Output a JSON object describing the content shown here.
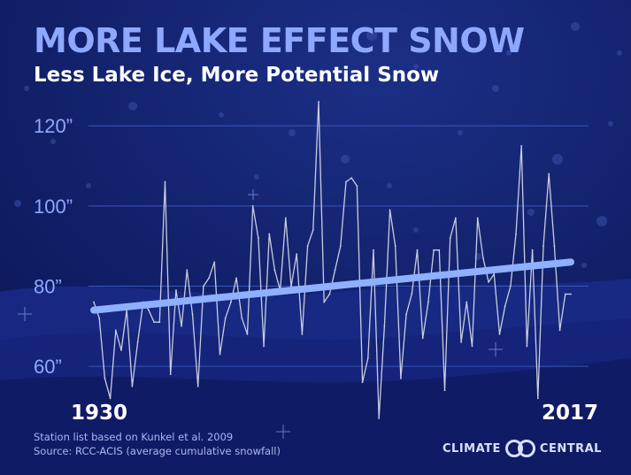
{
  "header": {
    "title": "MORE LAKE EFFECT SNOW",
    "subtitle": "Less Lake Ice, More Potential Snow"
  },
  "footer": {
    "note1": "Station list based on Kunkel et al. 2009",
    "note2": "Source: RCC-ACIS (average cumulative snowfall)"
  },
  "brand": {
    "left": "CLIMATE",
    "right": "CENTRAL"
  },
  "colors": {
    "background": "#0f1c63",
    "title": "#8fa8ff",
    "trend": "#8fb0ff",
    "series": "#c8cde0"
  },
  "chart_data": {
    "type": "line",
    "x": [
      1930,
      1931,
      1932,
      1933,
      1934,
      1935,
      1936,
      1937,
      1938,
      1939,
      1940,
      1941,
      1942,
      1943,
      1944,
      1945,
      1946,
      1947,
      1948,
      1949,
      1950,
      1951,
      1952,
      1953,
      1954,
      1955,
      1956,
      1957,
      1958,
      1959,
      1960,
      1961,
      1962,
      1963,
      1964,
      1965,
      1966,
      1967,
      1968,
      1969,
      1970,
      1971,
      1972,
      1973,
      1974,
      1975,
      1976,
      1977,
      1978,
      1979,
      1980,
      1981,
      1982,
      1983,
      1984,
      1985,
      1986,
      1987,
      1988,
      1989,
      1990,
      1991,
      1992,
      1993,
      1994,
      1995,
      1996,
      1997,
      1998,
      1999,
      2000,
      2001,
      2002,
      2003,
      2004,
      2005,
      2006,
      2007,
      2008,
      2009,
      2010,
      2011,
      2012,
      2013,
      2014,
      2015,
      2016,
      2017
    ],
    "series": [
      {
        "values": [
          76,
          72,
          57,
          52,
          69,
          64,
          74,
          55,
          66,
          76,
          74,
          71,
          71,
          106,
          58,
          79,
          70,
          84,
          73,
          55,
          80,
          82,
          86,
          63,
          72,
          76,
          82,
          72,
          68,
          100,
          92,
          65,
          93,
          84,
          79,
          97,
          80,
          88,
          68,
          90,
          94,
          126,
          76,
          78,
          84,
          90,
          106,
          107,
          105,
          56,
          62,
          89,
          47,
          70,
          99,
          90,
          57,
          73,
          78,
          89,
          67,
          76,
          89,
          89,
          54,
          92,
          97,
          66,
          76,
          65,
          97,
          87,
          81,
          83,
          68,
          75,
          80,
          93,
          115,
          65,
          89,
          52,
          90,
          108,
          90,
          69,
          78,
          78
        ]
      }
    ],
    "trend": {
      "start": [
        1930,
        74
      ],
      "end": [
        2017,
        86
      ]
    },
    "yticks": [
      60,
      80,
      100,
      120
    ],
    "ytick_labels": [
      "60”",
      "80”",
      "100”",
      "120”"
    ],
    "xtick_labels": [
      "1930",
      "2017"
    ],
    "ylim": [
      47,
      126
    ],
    "xlim": [
      1930,
      2017
    ],
    "grid": true
  }
}
